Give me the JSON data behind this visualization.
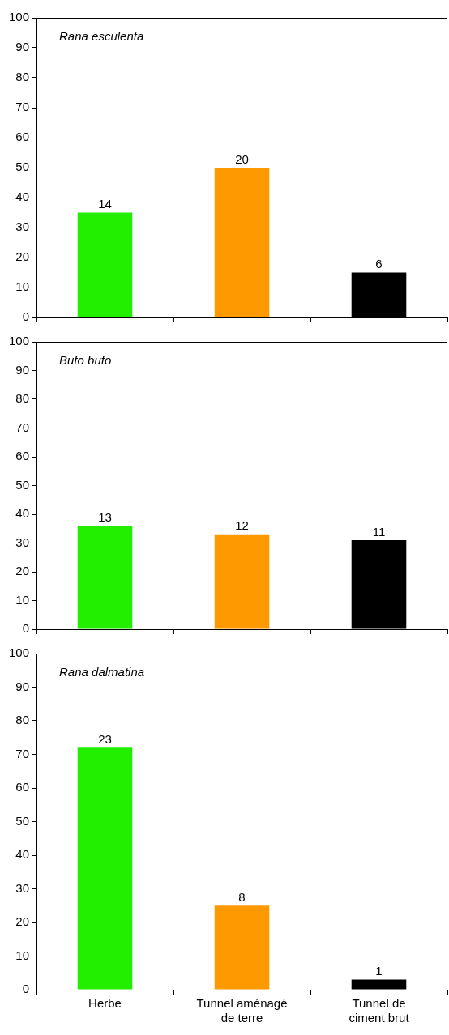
{
  "chart_data": [
    {
      "type": "bar",
      "title": "Rana esculenta",
      "categories": [
        "Herbe",
        "Tunnel aménagé de terre",
        "Tunnel de ciment brut"
      ],
      "values": [
        35,
        50,
        15
      ],
      "colors": [
        "#22ee00",
        "#ff9900",
        "#000000"
      ],
      "annotations": [
        {
          "text": "14",
          "x": "Herbe",
          "y": 35
        },
        {
          "text": "20",
          "x": "Tunnel aménagé de terre",
          "y": 50
        },
        {
          "text": "6",
          "x": "Tunnel de ciment brut",
          "y": 15
        }
      ],
      "ylim": [
        0,
        100
      ],
      "yticks": [
        0,
        10,
        20,
        30,
        40,
        50,
        60,
        70,
        80,
        90,
        100
      ],
      "tick_labels": "y"
    },
    {
      "type": "bar",
      "title": "Bufo bufo",
      "categories": [
        "Herbe",
        "Tunnel aménagé de terre",
        "Tunnel de ciment brut"
      ],
      "values": [
        36,
        33,
        31
      ],
      "colors": [
        "#22ee00",
        "#ff9900",
        "#000000"
      ],
      "annotations": [
        {
          "text": "13",
          "x": "Herbe",
          "y": 36
        },
        {
          "text": "12",
          "x": "Tunnel aménagé de terre",
          "y": 33
        },
        {
          "text": "11",
          "x": "Tunnel de ciment brut",
          "y": 31
        }
      ],
      "ylim": [
        0,
        100
      ],
      "yticks": [
        0,
        10,
        20,
        30,
        40,
        50,
        60,
        70,
        80,
        90,
        100
      ],
      "tick_labels": "y"
    },
    {
      "type": "bar",
      "title": "Rana dalmatina",
      "categories": [
        "Herbe",
        "Tunnel aménagé de terre",
        "Tunnel de ciment brut"
      ],
      "values": [
        72,
        25,
        3
      ],
      "colors": [
        "#22ee00",
        "#ff9900",
        "#000000"
      ],
      "annotations": [
        {
          "text": "23",
          "x": "Herbe",
          "y": 72
        },
        {
          "text": "8",
          "x": "Tunnel aménagé de terre",
          "y": 25
        },
        {
          "text": "1",
          "x": "Tunnel de ciment brut",
          "y": 3
        }
      ],
      "ylim": [
        0,
        100
      ],
      "yticks": [
        0,
        10,
        20,
        30,
        40,
        50,
        60,
        70,
        80,
        90,
        100
      ]
    }
  ]
}
